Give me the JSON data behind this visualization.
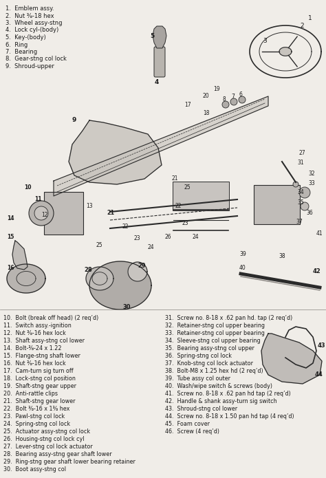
{
  "bg_color": "#f0ede8",
  "diagram_bg": "#f0ede8",
  "text_color": "#1a1a1a",
  "line_color": "#2a2a2a",
  "legend_top": [
    "1.  Emblem assy.",
    "2.  Nut ⅜-18 hex",
    "3.  Wheel assy-stng",
    "4.  Lock cyl-(body)",
    "5.  Key-(body)",
    "6.  Ring",
    "7.  Bearing",
    "8.  Gear-stng col lock",
    "9.  Shroud-upper"
  ],
  "legend_col1": [
    "10.  Bolt (break off head) (2 req’d)",
    "11.  Switch assy.-ignition",
    "12.  Nut ⅜-16 hex lock",
    "13.  Shaft assy-stng col lower",
    "14.  Bolt-⅜-24 x 1.22",
    "15.  Flange-stng shaft lower",
    "16.  Nut ⅜-16 hex lock",
    "17.  Cam-turn sig turn off",
    "18.  Lock-stng col position",
    "19.  Shaft-stng gear upper",
    "20.  Anti-rattle clips",
    "21.  Shaft-stng gear lower",
    "22.  Bolt ⅜-16 x 1⅜ hex",
    "23.  Pawl-stng col lock",
    "24.  Spring-stng col lock",
    "25.  Actuator assy-stng col lock",
    "26.  Housing-stng col lock cyl",
    "27.  Lever-stng col lock actuator",
    "28.  Bearing assy-stng gear shaft lower",
    "29.  Ring-stng gear shaft lower bearing retainer",
    "30.  Boot assy-stng col"
  ],
  "legend_col2": [
    "31.  Screw no. 8-18 x .62 pan hd. tap (2 req’d)",
    "32.  Retainer-stng col upper bearing",
    "33.  Retainer-stng col upper bearing",
    "34.  Sleeve-stng col upper bearing",
    "35.  Bearing assy-stng col upper",
    "36.  Spring-stng col lock",
    "37.  Knob-stng col lock actuator",
    "38.  Bolt-M8 x 1.25 hex hd (2 req’d)",
    "39.  Tube assy col outer",
    "40.  Wash/wipe switch & screws (body)",
    "41.  Screw no. 8-18 x .62 pan hd tap (2 req’d)",
    "42.  Handle & shank assy-turn sig switch",
    "43.  Shroud-stng col lower",
    "44.  Screw no. 8-18 x 1.50 pan hd tap (4 req’d)",
    "45.  Foam cover",
    "46.  Screw (4 req’d)"
  ]
}
